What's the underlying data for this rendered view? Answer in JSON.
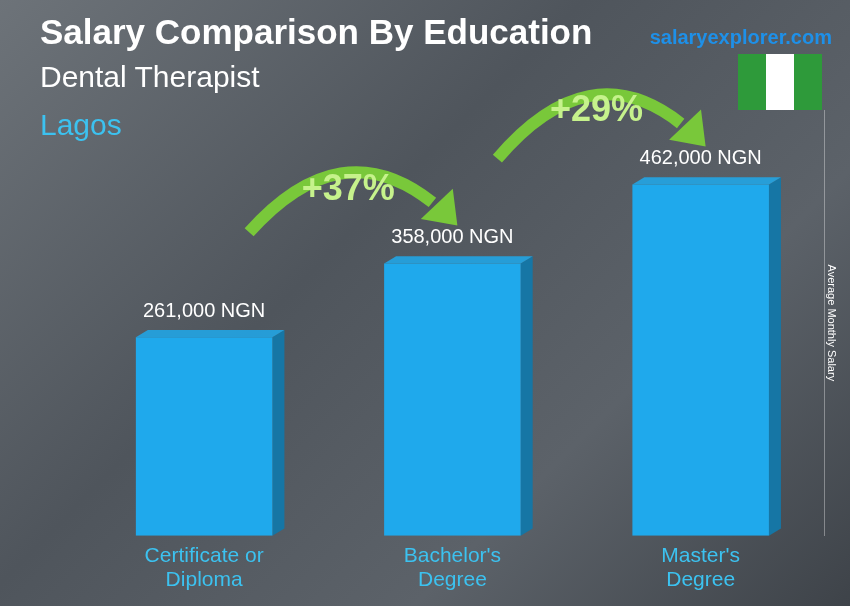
{
  "chart_data": {
    "type": "bar",
    "title": "Salary Comparison By Education",
    "subtitle": [
      "Dental Therapist",
      "Lagos"
    ],
    "source": "salaryexplorer.com",
    "y_label": "Average Monthly Salary",
    "categories": [
      "Certificate or Diploma",
      "Bachelor's Degree",
      "Master's Degree"
    ],
    "values": [
      261000,
      358000,
      462000
    ],
    "value_labels": [
      "261,000 NGN",
      "358,000 NGN",
      "462,000 NGN"
    ],
    "annotations": [
      "+37%",
      "+29%"
    ],
    "color": "#1fa9ec",
    "ylim": [
      0,
      560000
    ],
    "grid": false,
    "data_labels": true,
    "tick_labels": "x"
  }
}
